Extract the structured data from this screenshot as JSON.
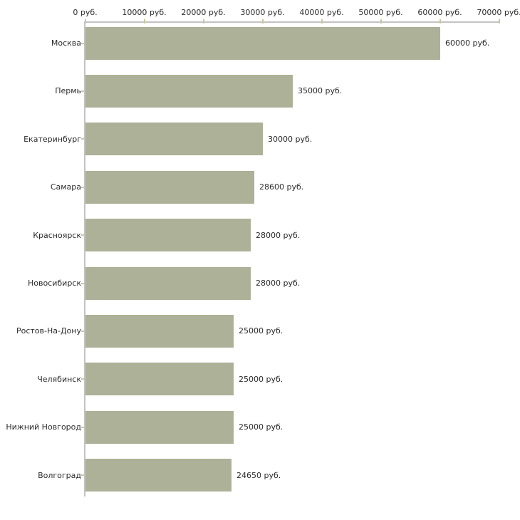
{
  "chart_data": {
    "type": "bar",
    "orientation": "horizontal",
    "title": "",
    "categories": [
      "Москва",
      "Пермь",
      "Екатеринбург",
      "Самара",
      "Красноярск",
      "Новосибирск",
      "Ростов-На-Дону",
      "Челябинск",
      "Нижний Новгород",
      "Волгоград"
    ],
    "values": [
      60000,
      35000,
      30000,
      28600,
      28000,
      28000,
      25000,
      25000,
      25000,
      24650
    ],
    "value_labels": [
      "60000 руб.",
      "35000 руб.",
      "30000 руб.",
      "28600 руб.",
      "28000 руб.",
      "28000 руб.",
      "25000 руб.",
      "25000 руб.",
      "25000 руб.",
      "24650 руб."
    ],
    "unit": "руб.",
    "x_axis": {
      "position": "top",
      "range": [
        0,
        70000
      ],
      "ticks": [
        0,
        10000,
        20000,
        30000,
        40000,
        50000,
        60000,
        70000
      ],
      "tick_labels": [
        "0 руб.",
        "10000 руб.",
        "20000 руб.",
        "30000 руб.",
        "40000 руб.",
        "50000 руб.",
        "60000 руб.",
        "70000 руб."
      ]
    },
    "grid": false,
    "legend": false,
    "colors": {
      "bar": "#acb197",
      "axis_line": "#c3c3c3",
      "tick_mark": "#c8c8a0",
      "text": "#2b2b2b",
      "background": "#ffffff"
    }
  }
}
